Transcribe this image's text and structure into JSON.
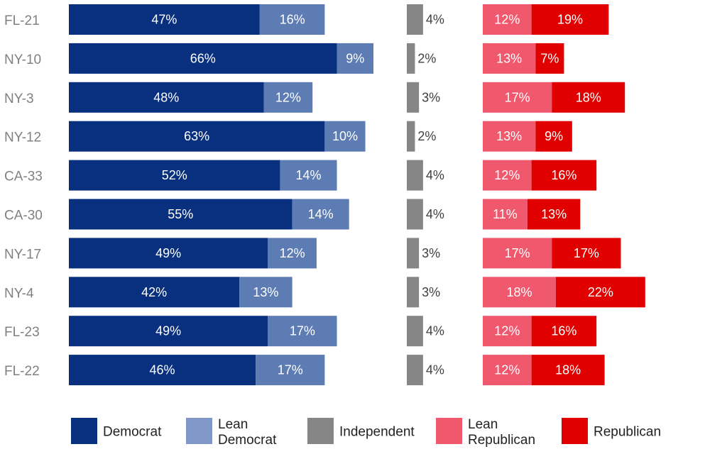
{
  "chart_data": {
    "type": "bar",
    "stacked": true,
    "categories": [
      "FL-21",
      "NY-10",
      "NY-3",
      "NY-12",
      "CA-33",
      "CA-30",
      "NY-17",
      "NY-4",
      "FL-23",
      "FL-22"
    ],
    "series": [
      {
        "name": "Democrat",
        "color": "#08307f",
        "values": [
          47,
          66,
          48,
          63,
          52,
          55,
          49,
          42,
          49,
          46
        ]
      },
      {
        "name": "Lean Democrat",
        "color": "#5c7cb3",
        "values": [
          16,
          9,
          12,
          10,
          14,
          14,
          12,
          13,
          17,
          17
        ]
      },
      {
        "name": "Independent",
        "color": "#868686",
        "values": [
          4,
          2,
          3,
          2,
          4,
          4,
          3,
          3,
          4,
          4
        ]
      },
      {
        "name": "Lean Republican",
        "color": "#f0586e",
        "values": [
          12,
          13,
          17,
          13,
          12,
          11,
          17,
          18,
          12,
          12
        ]
      },
      {
        "name": "Republican",
        "color": "#e00000",
        "values": [
          19,
          7,
          18,
          9,
          16,
          13,
          17,
          22,
          16,
          18
        ]
      }
    ],
    "legend": {
      "position": "bottom",
      "entries": [
        {
          "label": [
            "Democrat"
          ],
          "color": "#08307f"
        },
        {
          "label": [
            "Lean",
            "Democrat"
          ],
          "color": "#8097c8"
        },
        {
          "label": [
            "Independent"
          ],
          "color": "#868686"
        },
        {
          "label": [
            "Lean",
            "Republican"
          ],
          "color": "#f0586e"
        },
        {
          "label": [
            "Republican"
          ],
          "color": "#e00000"
        }
      ]
    },
    "value_suffix": "%",
    "title": "",
    "xlabel": "",
    "ylabel": "",
    "grid": false,
    "colors": {
      "category_label": "#808080",
      "label_on_bar": "#ffffff",
      "label_outside": "#404040"
    }
  }
}
